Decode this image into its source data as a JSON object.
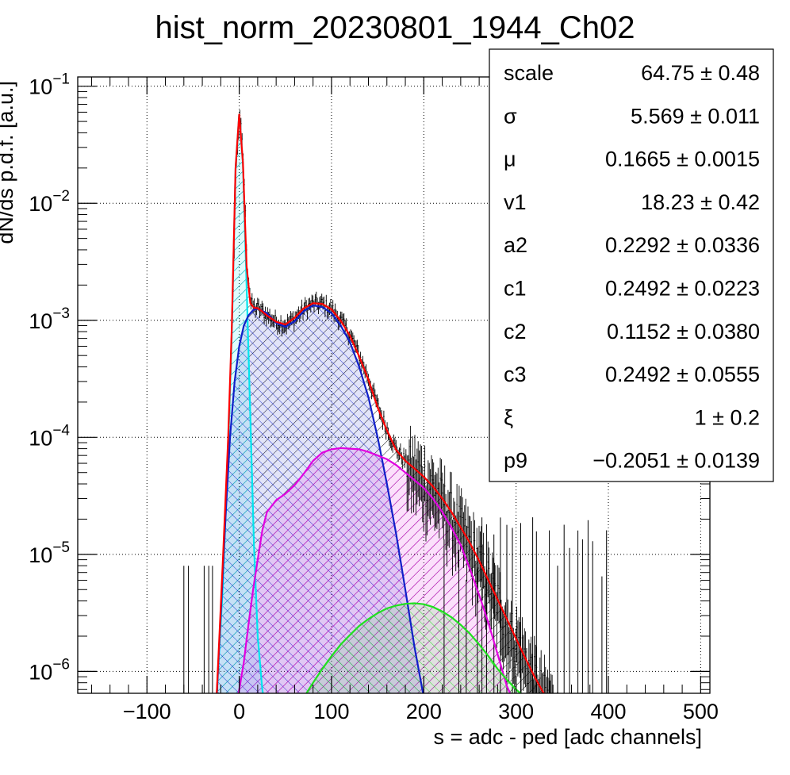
{
  "chart_data": {
    "type": "line",
    "title": "hist_norm_20230801_1944_Ch02",
    "xlabel": "s = adc - ped [adc channels]",
    "ylabel": "dN/ds p.d.f. [a.u.]",
    "log_y": true,
    "grid": true,
    "xlim": [
      -175,
      510
    ],
    "ylim": [
      6.5e-07,
      0.12
    ],
    "x_ticks": [
      -100,
      0,
      100,
      200,
      300,
      400,
      500
    ],
    "x_tick_labels": [
      "−100",
      "0",
      "100",
      "200",
      "300",
      "400",
      "500"
    ],
    "y_ticks": [
      1e-06,
      1e-05,
      0.0001,
      0.001,
      0.01,
      0.1
    ],
    "y_tick_bases": [
      "10",
      "10",
      "10",
      "10",
      "10",
      "10"
    ],
    "y_tick_exponents": [
      "−6",
      "−5",
      "−4",
      "−3",
      "−2",
      "−1"
    ],
    "legend_position": "top-right",
    "stats": [
      {
        "name": "scale",
        "value": "64.75 ± 0.48"
      },
      {
        "name": "σ",
        "value": "5.569 ± 0.011"
      },
      {
        "name": "μ",
        "value": "0.1665 ± 0.0015"
      },
      {
        "name": "v1",
        "value": "18.23 ± 0.42"
      },
      {
        "name": "a2",
        "value": "0.2292 ± 0.0336"
      },
      {
        "name": "c1",
        "value": "0.2492 ± 0.0223"
      },
      {
        "name": "c2",
        "value": "0.1152 ± 0.0380"
      },
      {
        "name": "c3",
        "value": "0.2492 ± 0.0555"
      },
      {
        "name": "ξ",
        "value": "1 ± 0.2"
      },
      {
        "name": "p9",
        "value": "−0.2051 ± 0.0139"
      }
    ],
    "series": [
      {
        "color": "#00e5ee",
        "hatch": true,
        "x": [
          -25,
          -18,
          -12,
          -8,
          -4,
          0,
          4,
          8,
          12,
          16,
          20,
          25,
          28
        ],
        "y": [
          5e-07,
          5e-06,
          8e-05,
          0.0008,
          0.02,
          0.058,
          0.022,
          0.002,
          0.00015,
          1.2e-05,
          2e-06,
          7e-07,
          5e-07
        ]
      },
      {
        "color": "#1020c8",
        "hatch": true,
        "x": [
          -25,
          -20,
          -15,
          -10,
          -5,
          0,
          5,
          10,
          15,
          20,
          30,
          40,
          50,
          60,
          70,
          80,
          90,
          100,
          110,
          120,
          130,
          140,
          150,
          160,
          170,
          180,
          190,
          200,
          210
        ],
        "y": [
          5e-07,
          3e-06,
          2e-05,
          0.0001,
          0.0003,
          0.0006,
          0.0009,
          0.0011,
          0.00122,
          0.00126,
          0.00115,
          0.00095,
          0.00088,
          0.00098,
          0.0012,
          0.00134,
          0.0013,
          0.00115,
          0.0009,
          0.00065,
          0.0004,
          0.00022,
          0.0001,
          4e-05,
          1.5e-05,
          5e-06,
          1.6e-06,
          6e-07,
          5e-07
        ]
      },
      {
        "color": "#e000e0",
        "hatch": true,
        "x": [
          -5,
          0,
          5,
          10,
          15,
          20,
          25,
          30,
          40,
          50,
          60,
          70,
          80,
          90,
          100,
          110,
          120,
          130,
          140,
          150,
          160,
          170,
          180,
          190,
          200,
          210,
          220,
          230,
          240,
          250,
          260,
          270,
          280,
          290,
          300
        ],
        "y": [
          5e-07,
          7e-07,
          1.2e-06,
          2.5e-06,
          5e-06,
          9e-06,
          1.6e-05,
          2.3e-05,
          2.9e-05,
          3.3e-05,
          3.9e-05,
          4.9e-05,
          6.3e-05,
          7.4e-05,
          7.9e-05,
          8.1e-05,
          8e-05,
          7.9e-05,
          7.5e-05,
          7e-05,
          6.5e-05,
          5.8e-05,
          5e-05,
          4.3e-05,
          3.7e-05,
          3e-05,
          2.3e-05,
          1.7e-05,
          1.2e-05,
          7.5e-06,
          4.5e-06,
          2.6e-06,
          1.4e-06,
          7.5e-07,
          5e-07
        ]
      },
      {
        "color": "#20e020",
        "hatch": true,
        "x": [
          60,
          70,
          80,
          90,
          100,
          110,
          120,
          130,
          140,
          150,
          160,
          170,
          180,
          190,
          200,
          210,
          220,
          230,
          240,
          250,
          260,
          270,
          280,
          290,
          300,
          310,
          320,
          330
        ],
        "y": [
          5e-07,
          6e-07,
          8e-07,
          1.05e-06,
          1.35e-06,
          1.7e-06,
          2.05e-06,
          2.45e-06,
          2.8e-06,
          3.15e-06,
          3.45e-06,
          3.65e-06,
          3.78e-06,
          3.82e-06,
          3.75e-06,
          3.55e-06,
          3.25e-06,
          2.9e-06,
          2.5e-06,
          2.1e-06,
          1.7e-06,
          1.35e-06,
          1.05e-06,
          8.5e-07,
          7e-07,
          6e-07,
          5.5e-07,
          5e-07
        ]
      },
      {
        "color": "#ff0000",
        "hatch": false,
        "x": [
          -25,
          -18,
          -12,
          -8,
          -4,
          0,
          4,
          8,
          12,
          16,
          20,
          25,
          30,
          40,
          50,
          60,
          70,
          80,
          90,
          100,
          110,
          120,
          130,
          140,
          150,
          160,
          170,
          180,
          190,
          200,
          210,
          220,
          230,
          240,
          250,
          260,
          270,
          280,
          290,
          300,
          310,
          320,
          330,
          340
        ],
        "y": [
          5e-07,
          8e-06,
          0.0001,
          0.0009,
          0.02,
          0.058,
          0.022,
          0.0029,
          0.0014,
          0.00128,
          0.00127,
          0.00119,
          0.0011,
          0.00097,
          0.00092,
          0.00105,
          0.00127,
          0.0014,
          0.00138,
          0.00124,
          0.00099,
          0.00074,
          0.00049,
          0.00031,
          0.00018,
          0.000115,
          7.8e-05,
          6.3e-05,
          5.4e-05,
          4.6e-05,
          3.8e-05,
          3e-05,
          2.3e-05,
          1.7e-05,
          1.25e-05,
          8.8e-06,
          6e-06,
          4.1e-06,
          2.8e-06,
          1.9e-06,
          1.3e-06,
          9e-07,
          6.5e-07,
          5e-07
        ]
      }
    ]
  }
}
